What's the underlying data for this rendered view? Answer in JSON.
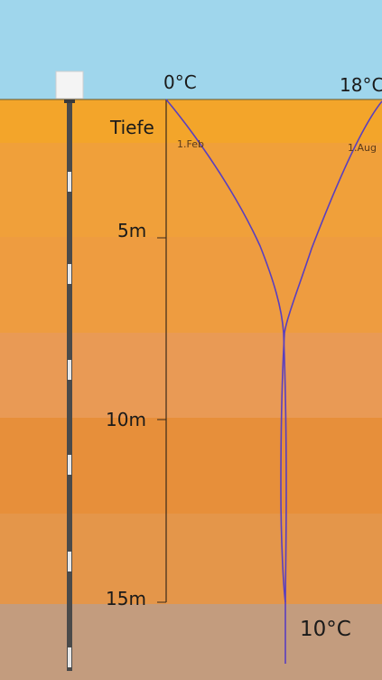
{
  "labels": {
    "surface_min_temp": "0°C",
    "surface_max_temp": "18°C",
    "depth_axis_title": "Tiefe",
    "depth_5": "5m",
    "depth_10": "10m",
    "depth_15": "15m",
    "curve_feb": "1.Feb",
    "curve_aug": "1.Aug",
    "deep_temp": "10°C"
  },
  "colors": {
    "sky": "#9fd6ec",
    "curve": "#5a3fbf",
    "axis": "#3a2a1a",
    "probe": "#4a4a4a"
  },
  "layers": [
    {
      "name": "layer-1",
      "color": "#f3a52a"
    },
    {
      "name": "layer-2",
      "color": "#f0a03a"
    },
    {
      "name": "layer-3",
      "color": "#ee9c40"
    },
    {
      "name": "layer-4",
      "color": "#e99a55"
    },
    {
      "name": "layer-5",
      "color": "#e78f3a"
    },
    {
      "name": "layer-6",
      "color": "#e4964a"
    },
    {
      "name": "layer-7",
      "color": "#c39c7e"
    }
  ],
  "icons": [
    "probe-head-icon",
    "ground-probe-icon"
  ]
}
